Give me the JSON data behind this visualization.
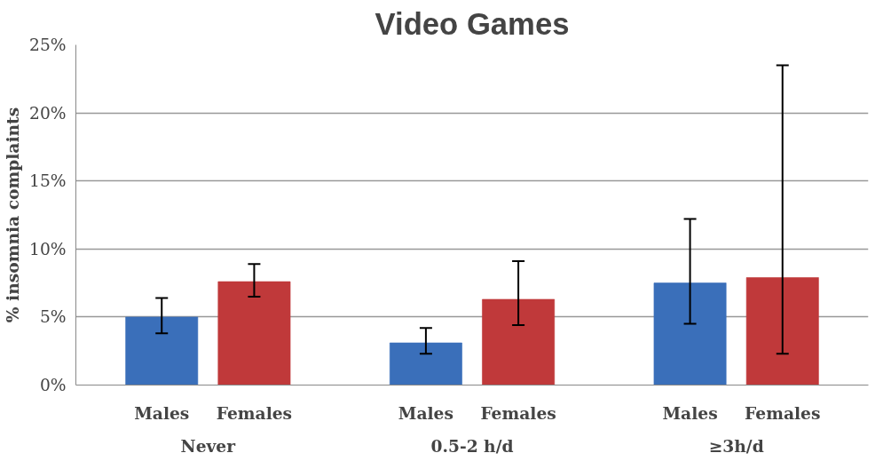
{
  "chart_data": {
    "type": "bar",
    "title": "Video Games",
    "ylabel": "% insomnia complaints",
    "categories": [
      "Never",
      "0.5-2 h/d",
      "≥3h/d"
    ],
    "series": [
      {
        "name": "Males",
        "color": "#3a6fba",
        "values": [
          5.0,
          3.1,
          7.5
        ],
        "errors": [
          [
            3.8,
            6.4
          ],
          [
            2.3,
            4.2
          ],
          [
            4.5,
            12.2
          ]
        ]
      },
      {
        "name": "Females",
        "color": "#c0393a",
        "values": [
          7.6,
          6.3,
          7.9
        ],
        "errors": [
          [
            6.5,
            8.9
          ],
          [
            4.4,
            9.1
          ],
          [
            2.3,
            23.5
          ]
        ]
      }
    ],
    "ylim": [
      0,
      25
    ],
    "yticks": [
      {
        "value": 0,
        "label": "0%"
      },
      {
        "value": 5,
        "label": "5%"
      },
      {
        "value": 10,
        "label": "10%"
      },
      {
        "value": 15,
        "label": "15%"
      },
      {
        "value": 20,
        "label": "20%"
      },
      {
        "value": 25,
        "label": "25%"
      }
    ],
    "grid": "y"
  }
}
